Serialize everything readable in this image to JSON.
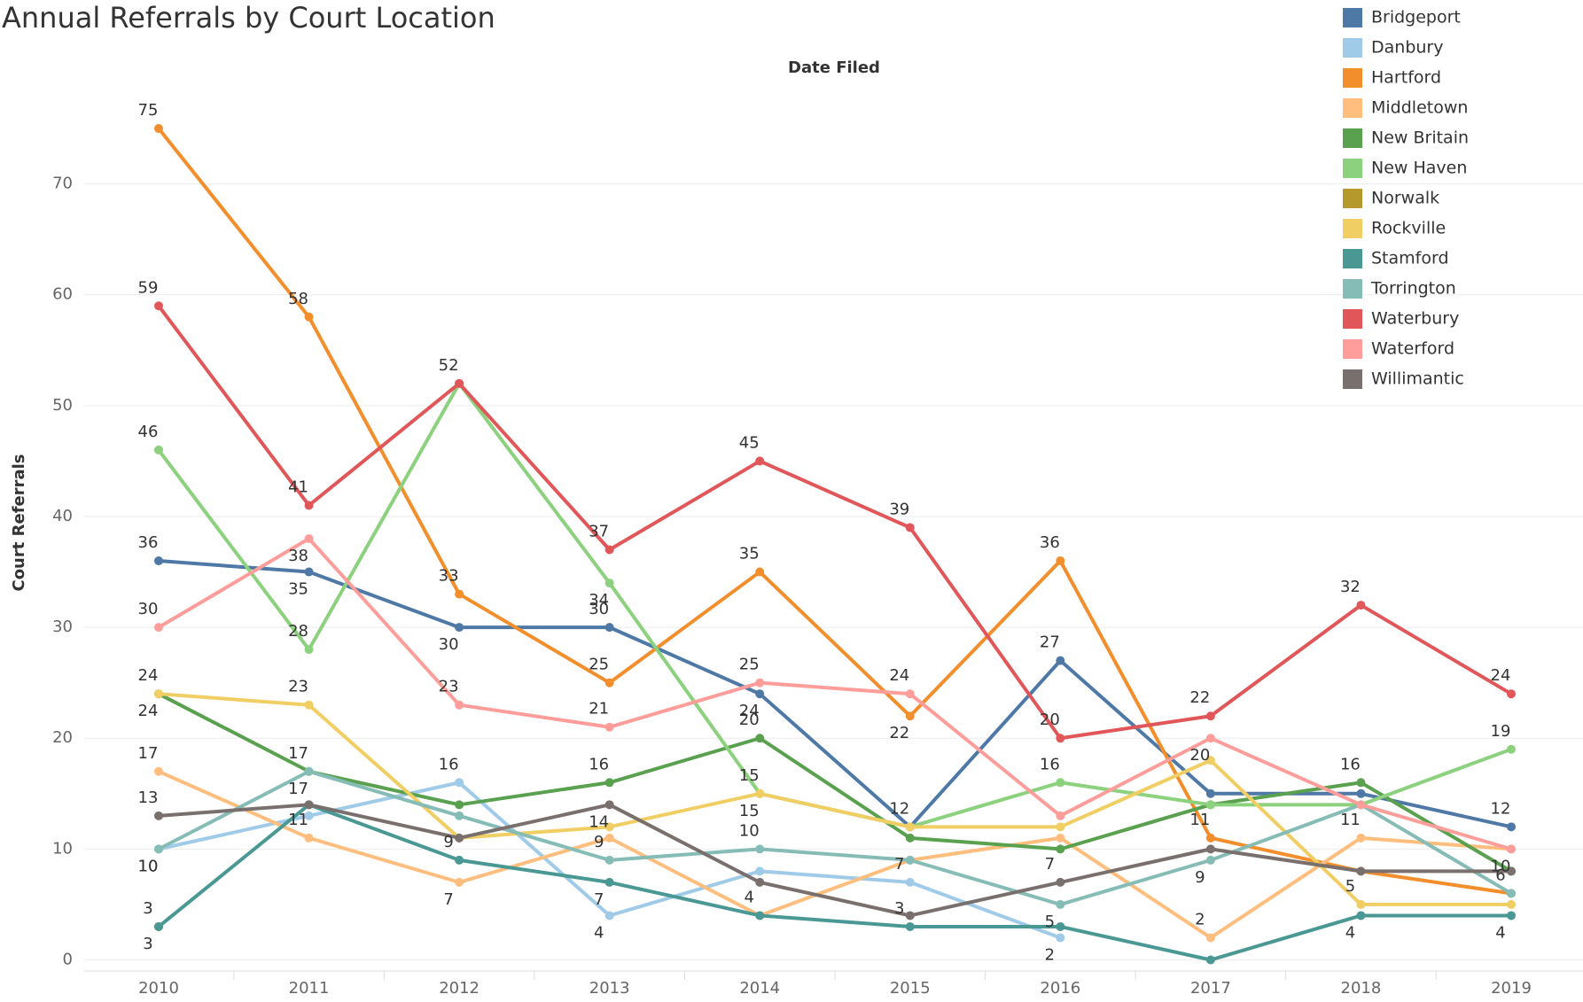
{
  "chart_data": {
    "type": "line",
    "title": "Annual Referrals by Court Location",
    "x_label": "Date Filed",
    "y_label": "Court Referrals",
    "categories": [
      "2010",
      "2011",
      "2012",
      "2013",
      "2014",
      "2015",
      "2016",
      "2017",
      "2018",
      "2019"
    ],
    "ylim": [
      -1,
      79
    ],
    "yticks": [
      0,
      10,
      20,
      30,
      40,
      50,
      60,
      70
    ],
    "grid": true,
    "legend": "top-right",
    "series": [
      {
        "name": "Bridgeport",
        "color": "#4e79a7",
        "values": [
          36,
          35,
          30,
          30,
          24,
          12,
          27,
          15,
          15,
          12
        ],
        "value_labels": [
          "36",
          "35",
          "30",
          "30",
          "24",
          "12",
          "27",
          null,
          null,
          "12"
        ]
      },
      {
        "name": "Danbury",
        "color": "#a0cbe8",
        "values": [
          10,
          13,
          16,
          4,
          8,
          7,
          2,
          null,
          null,
          null
        ],
        "value_labels": [
          "10",
          null,
          "16",
          "4",
          null,
          "7",
          "2",
          null,
          null,
          null
        ]
      },
      {
        "name": "Hartford",
        "color": "#f28e2b",
        "values": [
          75,
          58,
          33,
          25,
          35,
          22,
          36,
          11,
          8,
          6
        ],
        "value_labels": [
          "75",
          "58",
          "33",
          "25",
          "35",
          "22",
          "36",
          "11",
          null,
          "6"
        ]
      },
      {
        "name": "Middletown",
        "color": "#ffbe7d",
        "values": [
          17,
          11,
          7,
          11,
          4,
          9,
          11,
          2,
          11,
          10
        ],
        "value_labels": [
          "17",
          "11",
          "7",
          null,
          "4",
          null,
          null,
          "2",
          "11",
          "10"
        ]
      },
      {
        "name": "New Britain",
        "color": "#59a14f",
        "values": [
          24,
          17,
          14,
          16,
          20,
          11,
          10,
          14,
          16,
          8
        ],
        "value_labels": [
          "24",
          "17",
          null,
          "16",
          "20",
          null,
          null,
          null,
          "16",
          null
        ]
      },
      {
        "name": "New Haven",
        "color": "#8cd17d",
        "values": [
          46,
          28,
          52,
          34,
          15,
          12,
          16,
          14,
          14,
          19
        ],
        "value_labels": [
          "46",
          "28",
          "52",
          "34",
          "15",
          null,
          "16",
          null,
          null,
          "19"
        ]
      },
      {
        "name": "Norwalk",
        "color": "#b6992d",
        "values": [
          3,
          null,
          null,
          null,
          null,
          null,
          null,
          null,
          null,
          null
        ],
        "value_labels": [
          "3",
          null,
          null,
          null,
          null,
          null,
          null,
          null,
          null,
          null
        ]
      },
      {
        "name": "Rockville",
        "color": "#f1ce63",
        "values": [
          24,
          23,
          11,
          12,
          15,
          12,
          12,
          18,
          5,
          5
        ],
        "value_labels": [
          "24",
          "23",
          null,
          null,
          "15",
          null,
          null,
          null,
          "5",
          null
        ]
      },
      {
        "name": "Stamford",
        "color": "#499894",
        "values": [
          3,
          14,
          9,
          7,
          4,
          3,
          3,
          0,
          4,
          4
        ],
        "value_labels": [
          "3",
          null,
          "9",
          "7",
          null,
          "3",
          null,
          null,
          "4",
          "4"
        ]
      },
      {
        "name": "Torrington",
        "color": "#86bcb6",
        "values": [
          10,
          17,
          13,
          9,
          10,
          9,
          5,
          9,
          14,
          6
        ],
        "value_labels": [
          "10",
          "17",
          null,
          "9",
          "10",
          null,
          "5",
          "9",
          null,
          null
        ]
      },
      {
        "name": "Waterbury",
        "color": "#e15759",
        "values": [
          59,
          41,
          52,
          37,
          45,
          39,
          20,
          22,
          32,
          24
        ],
        "value_labels": [
          "59",
          "41",
          null,
          "37",
          "45",
          "39",
          "20",
          "22",
          "32",
          "24"
        ]
      },
      {
        "name": "Waterford",
        "color": "#ff9d9a",
        "values": [
          30,
          38,
          23,
          21,
          25,
          24,
          13,
          20,
          14,
          10
        ],
        "value_labels": [
          "30",
          "38",
          "23",
          "21",
          "25",
          "24",
          null,
          "20",
          null,
          null
        ]
      },
      {
        "name": "Willimantic",
        "color": "#79706e",
        "values": [
          13,
          14,
          11,
          14,
          7,
          4,
          7,
          10,
          8,
          8
        ],
        "value_labels": [
          "13",
          null,
          null,
          "14",
          null,
          null,
          "7",
          null,
          null,
          null
        ]
      }
    ]
  }
}
